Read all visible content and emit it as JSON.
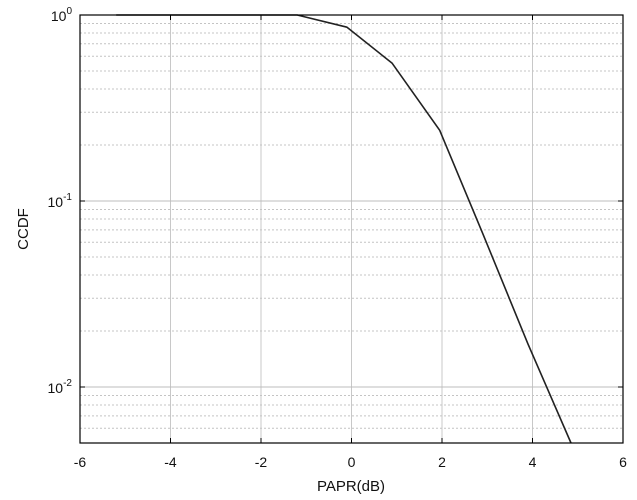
{
  "chart_data": {
    "type": "line",
    "title": "",
    "xlabel": "PAPR(dB)",
    "ylabel": "CCDF",
    "xlim": [
      -6,
      6
    ],
    "ylim": [
      0.005,
      1
    ],
    "yscale": "log",
    "grid": true,
    "x_ticks": [
      -6,
      -4,
      -2,
      0,
      2,
      4,
      6
    ],
    "x_tick_labels": [
      "-6",
      "-4",
      "-2",
      "0",
      "2",
      "4",
      "6"
    ],
    "y_ticks": [
      {
        "value": 1,
        "base": "10",
        "exp": "0"
      },
      {
        "value": 0.1,
        "base": "10",
        "exp": "-1"
      },
      {
        "value": 0.01,
        "base": "10",
        "exp": "-2"
      }
    ],
    "series": [
      {
        "color": "#222222",
        "x": [
          -5.2,
          -1.2,
          -0.1,
          0.9,
          1.95,
          2.9,
          3.9,
          4.85
        ],
        "y": [
          1.0,
          1.0,
          0.86,
          0.55,
          0.24,
          0.067,
          0.017,
          0.005
        ]
      }
    ]
  }
}
